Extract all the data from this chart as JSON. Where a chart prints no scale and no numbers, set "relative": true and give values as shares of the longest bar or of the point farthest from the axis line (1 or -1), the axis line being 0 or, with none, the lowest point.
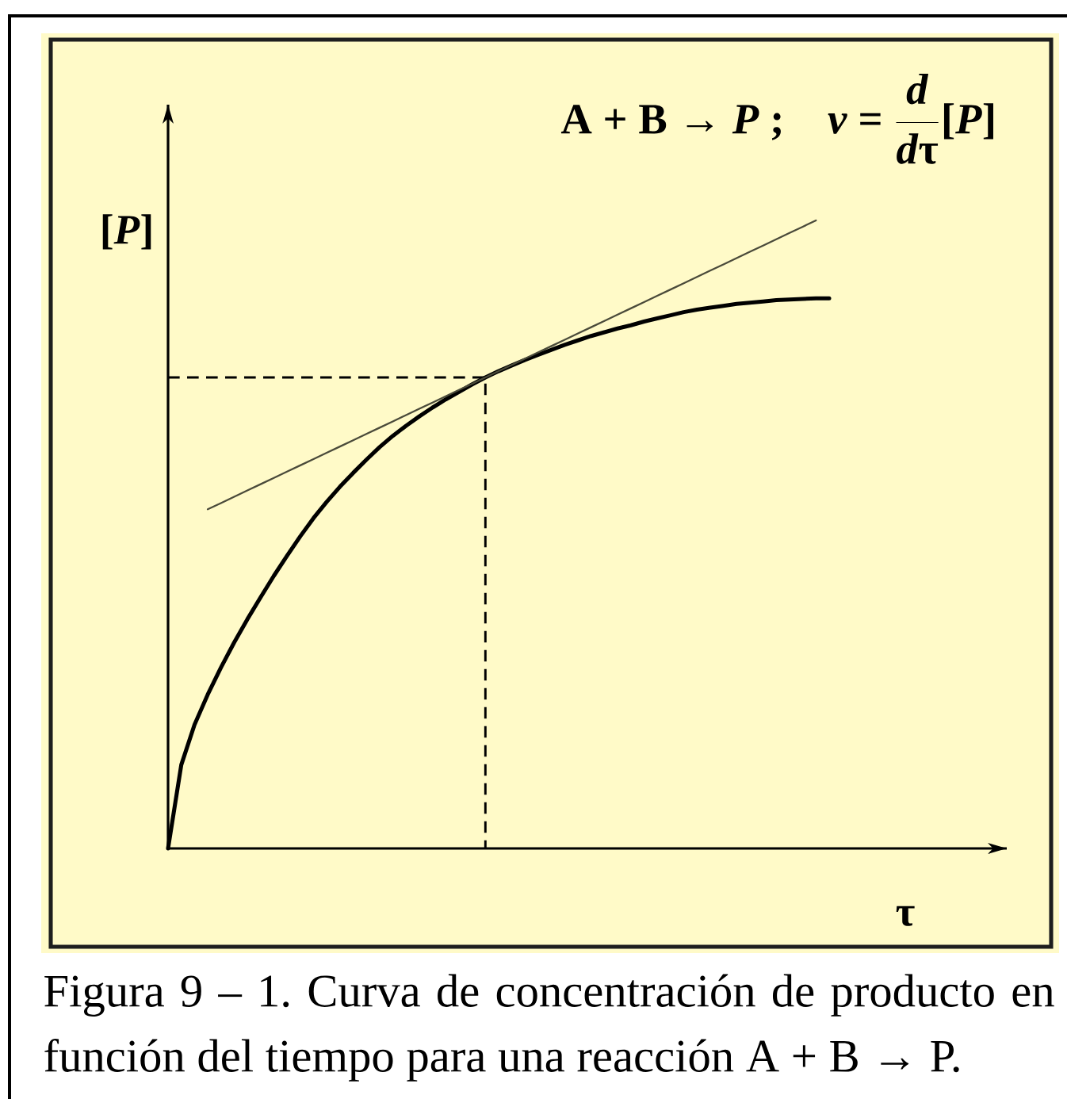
{
  "chart_data": {
    "type": "line",
    "title": "\\textbf{A + B → \\textit{P} ;}\\quad\\textbf{\\textit{v} = }\\frac{\\textbf{\\textit{d}}}{\\textbf{\\textit{d}τ}}\\textbf{[\\textit{P}]}",
    "xlabel": "τ",
    "ylabel": "[*P*]",
    "annotations": [
      "Figura 9 – 1. Curva de concentración de producto en función del tiempo para una reacción A + B → P."
    ],
    "relative": true,
    "categories": [
      null,
      null,
      null,
      null,
      null,
      null,
      null,
      null,
      null,
      null,
      null,
      null,
      null,
      null,
      null,
      null,
      null,
      null,
      null,
      null,
      null,
      null,
      null,
      null,
      null,
      null,
      null,
      null,
      null,
      null,
      null,
      null,
      null,
      null,
      null,
      null,
      null,
      null,
      null,
      null,
      null,
      null,
      null,
      null,
      null,
      null,
      null,
      null,
      null,
      null,
      null
    ],
    "series": [
      {
        "color": "#000000",
        "values": [
          0,
          0.133,
          0.197,
          0.245,
          0.288,
          0.328,
          0.365,
          0.4,
          0.434,
          0.466,
          0.497,
          0.526,
          0.552,
          0.576,
          0.598,
          0.619,
          0.639,
          0.657,
          0.673,
          0.688,
          0.702,
          0.715,
          0.727,
          0.739,
          0.75,
          0.76,
          0.769,
          0.778,
          0.786,
          0.794,
          0.802,
          0.809,
          0.816,
          0.822,
          0.828,
          0.833,
          0.839,
          0.844,
          0.849,
          0.854,
          0.858,
          0.861,
          0.864,
          0.867,
          0.869,
          0.871,
          0.873,
          0.874,
          0.875,
          0.876,
          0.876
        ]
      },
      {
        "color": "#4a4a3a",
        "values": [
          null,
          null,
          null,
          0.54,
          0.55,
          0.56,
          0.57,
          0.58,
          0.59,
          0.6,
          0.61,
          0.62,
          0.63,
          0.64,
          0.65,
          0.66,
          0.67,
          0.68,
          0.69,
          0.7,
          0.71,
          0.72,
          0.73,
          0.74,
          0.75,
          0.76,
          0.77,
          0.78,
          0.79,
          0.8,
          0.81,
          0.82,
          0.83,
          0.84,
          0.85,
          0.86,
          0.87,
          0.88,
          0.89,
          0.9,
          0.91,
          0.92,
          0.93,
          0.94,
          0.95,
          0.96,
          0.97,
          0.98,
          0.99,
          1.0,
          null
        ]
      }
    ],
    "ref_lines": [
      {
        "axis": "y",
        "value": 0.75,
        "line_style": "dashed",
        "color": "#000000"
      }
    ]
  }
}
